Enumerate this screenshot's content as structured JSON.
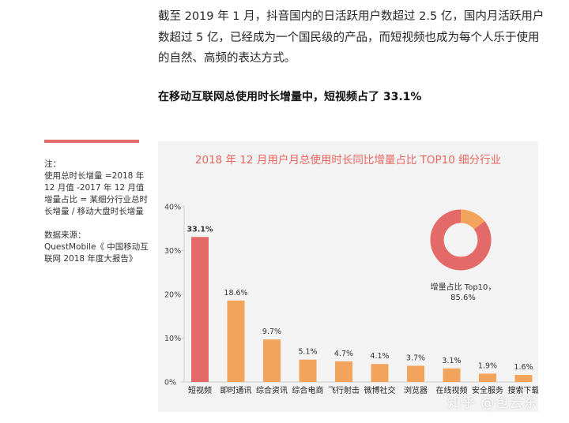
{
  "article": {
    "paragraph": "截至 2019 年 1 月，抖音国内的日活跃用户数超过 2.5 亿，国内月活跃用户数超过 5 亿，已经成为一个国民级的产品，而短视频也成为每个人乐于使用的自然、高频的表达方式。",
    "headline": "在移动互联网总使用时长增量中，短视频占了 33.1%"
  },
  "sidebar": {
    "note_title": "注：",
    "note_lines": [
      "使用总时长增量 =2018 年 12 月值 -2017 年 12 月值",
      "增量占比 = 某细分行业总时长增量 / 移动大盘时长增量"
    ],
    "source_title": "数据来源：",
    "source_text": "QuestMobile《 中国移动互联网 2018 年度大报告》"
  },
  "watermark": "知乎 @包云东",
  "colors": {
    "highlight": "#e46a6a",
    "bar": "#f3a45c",
    "donut_main": "#e46a6a",
    "donut_rest": "#f3a45c",
    "title": "#e8665f",
    "panel": "#f3f3f3"
  },
  "chart_data": [
    {
      "type": "bar",
      "title": "2018 年 12 月用户月总使用时长同比增量占比 TOP10 细分行业",
      "categories": [
        "短视频",
        "即时通讯",
        "综合资讯",
        "综合电商",
        "飞行射击",
        "微博社交",
        "浏览器",
        "在线视频",
        "安全服务",
        "搜索下载"
      ],
      "values": [
        33.1,
        18.6,
        9.7,
        5.1,
        4.7,
        4.1,
        3.7,
        3.1,
        1.9,
        1.6
      ],
      "value_labels": [
        "33.1%",
        "18.6%",
        "9.7%",
        "5.1%",
        "4.7%",
        "4.1%",
        "3.7%",
        "3.1%",
        "1.9%",
        "1.6%"
      ],
      "highlight_index": 0,
      "ylim": [
        0,
        40
      ],
      "yticks": [
        0,
        10,
        20,
        30,
        40
      ],
      "ytick_labels": [
        "0%",
        "10%",
        "20%",
        "30%",
        "40%"
      ],
      "grid": false
    },
    {
      "type": "pie",
      "labels": [
        "增量占比 Top10，",
        "85.6%"
      ],
      "values": [
        85.6,
        14.4
      ]
    }
  ]
}
